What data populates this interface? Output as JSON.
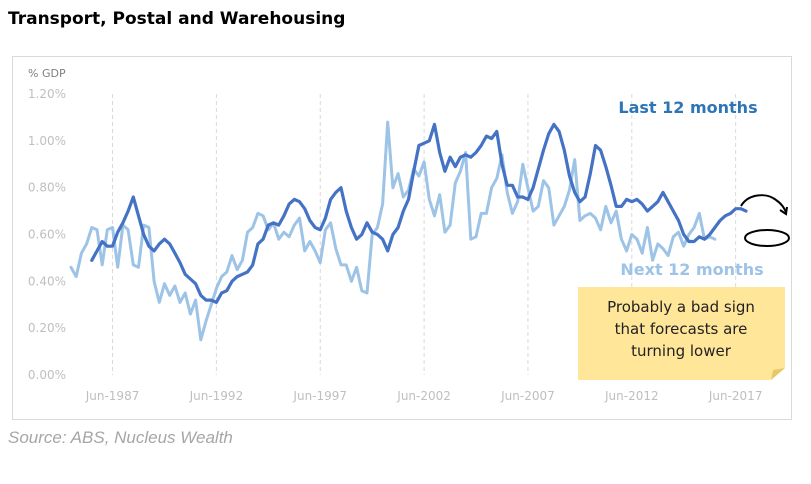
{
  "page": {
    "title": "Transport, Postal and Warehousing",
    "source": "Source: ABS, Nucleus Wealth"
  },
  "annotation": {
    "note_lines": [
      "Probably a bad sign",
      "that forecasts are",
      "turning lower"
    ],
    "note_bg": "#ffe699"
  },
  "chart_data": {
    "type": "line",
    "title": "",
    "ylabel": "% GDP",
    "xlabel": "",
    "ylim": [
      0,
      0.012
    ],
    "y_ticks": [
      "0.00%",
      "0.20%",
      "0.40%",
      "0.60%",
      "0.80%",
      "1.00%",
      "1.20%"
    ],
    "x_range": [
      "Jun-1985",
      "Mar-2019"
    ],
    "x_ticks": [
      "Jun-1987",
      "Jun-1992",
      "Jun-1997",
      "Jun-2002",
      "Jun-2007",
      "Jun-2012",
      "Jun-2017"
    ],
    "grid": "vertical dashed",
    "series": [
      {
        "name": "Last 12 months",
        "color": "#4472c4",
        "points": [
          [
            "Jun-1986",
            0.0049
          ],
          [
            "Sep-1986",
            0.0053
          ],
          [
            "Dec-1986",
            0.0057
          ],
          [
            "Mar-1987",
            0.0055
          ],
          [
            "Jun-1987",
            0.0055
          ],
          [
            "Sep-1987",
            0.0061
          ],
          [
            "Dec-1987",
            0.0065
          ],
          [
            "Mar-1988",
            0.007
          ],
          [
            "Jun-1988",
            0.0076
          ],
          [
            "Sep-1988",
            0.0068
          ],
          [
            "Dec-1988",
            0.006
          ],
          [
            "Mar-1989",
            0.0055
          ],
          [
            "Jun-1989",
            0.0053
          ],
          [
            "Sep-1989",
            0.0056
          ],
          [
            "Dec-1989",
            0.0058
          ],
          [
            "Mar-1990",
            0.0056
          ],
          [
            "Jun-1990",
            0.0052
          ],
          [
            "Sep-1990",
            0.0048
          ],
          [
            "Dec-1990",
            0.0043
          ],
          [
            "Mar-1991",
            0.0041
          ],
          [
            "Jun-1991",
            0.0039
          ],
          [
            "Sep-1991",
            0.0034
          ],
          [
            "Dec-1991",
            0.0032
          ],
          [
            "Mar-1992",
            0.0032
          ],
          [
            "Jun-1992",
            0.0031
          ],
          [
            "Sep-1992",
            0.0035
          ],
          [
            "Dec-1992",
            0.0036
          ],
          [
            "Mar-1993",
            0.004
          ],
          [
            "Jun-1993",
            0.0042
          ],
          [
            "Sep-1993",
            0.0043
          ],
          [
            "Dec-1993",
            0.0044
          ],
          [
            "Mar-1994",
            0.0047
          ],
          [
            "Jun-1994",
            0.0056
          ],
          [
            "Sep-1994",
            0.0058
          ],
          [
            "Dec-1994",
            0.0064
          ],
          [
            "Mar-1995",
            0.0065
          ],
          [
            "Jun-1995",
            0.0064
          ],
          [
            "Sep-1995",
            0.0068
          ],
          [
            "Dec-1995",
            0.0073
          ],
          [
            "Mar-1996",
            0.0075
          ],
          [
            "Jun-1996",
            0.0074
          ],
          [
            "Sep-1996",
            0.0071
          ],
          [
            "Dec-1996",
            0.0066
          ],
          [
            "Mar-1997",
            0.0063
          ],
          [
            "Jun-1997",
            0.0062
          ],
          [
            "Sep-1997",
            0.0067
          ],
          [
            "Dec-1997",
            0.0075
          ],
          [
            "Mar-1998",
            0.0078
          ],
          [
            "Jun-1998",
            0.008
          ],
          [
            "Sep-1998",
            0.007
          ],
          [
            "Dec-1998",
            0.0063
          ],
          [
            "Mar-1999",
            0.0058
          ],
          [
            "Jun-1999",
            0.006
          ],
          [
            "Sep-1999",
            0.0065
          ],
          [
            "Dec-1999",
            0.0061
          ],
          [
            "Mar-2000",
            0.006
          ],
          [
            "Jun-2000",
            0.0058
          ],
          [
            "Sep-2000",
            0.0053
          ],
          [
            "Dec-2000",
            0.006
          ],
          [
            "Mar-2001",
            0.0063
          ],
          [
            "Jun-2001",
            0.007
          ],
          [
            "Sep-2001",
            0.0075
          ],
          [
            "Dec-2001",
            0.0087
          ],
          [
            "Mar-2002",
            0.0098
          ],
          [
            "Jun-2002",
            0.0099
          ],
          [
            "Sep-2002",
            0.01
          ],
          [
            "Dec-2002",
            0.0107
          ],
          [
            "Mar-2003",
            0.0095
          ],
          [
            "Jun-2003",
            0.0087
          ],
          [
            "Sep-2003",
            0.0093
          ],
          [
            "Dec-2003",
            0.0089
          ],
          [
            "Mar-2004",
            0.0093
          ],
          [
            "Jun-2004",
            0.0094
          ],
          [
            "Sep-2004",
            0.0093
          ],
          [
            "Dec-2004",
            0.0095
          ],
          [
            "Mar-2005",
            0.0098
          ],
          [
            "Jun-2005",
            0.0102
          ],
          [
            "Sep-2005",
            0.0101
          ],
          [
            "Dec-2005",
            0.0104
          ],
          [
            "Mar-2006",
            0.009
          ],
          [
            "Jun-2006",
            0.0081
          ],
          [
            "Sep-2006",
            0.0081
          ],
          [
            "Dec-2006",
            0.0076
          ],
          [
            "Mar-2007",
            0.0076
          ],
          [
            "Jun-2007",
            0.0075
          ],
          [
            "Sep-2007",
            0.008
          ],
          [
            "Dec-2007",
            0.0088
          ],
          [
            "Mar-2008",
            0.0096
          ],
          [
            "Jun-2008",
            0.0103
          ],
          [
            "Sep-2008",
            0.0107
          ],
          [
            "Dec-2008",
            0.0104
          ],
          [
            "Mar-2009",
            0.0096
          ],
          [
            "Jun-2009",
            0.0085
          ],
          [
            "Sep-2009",
            0.0078
          ],
          [
            "Dec-2009",
            0.0074
          ],
          [
            "Mar-2010",
            0.0076
          ],
          [
            "Jun-2010",
            0.0086
          ],
          [
            "Sep-2010",
            0.0098
          ],
          [
            "Dec-2010",
            0.0096
          ],
          [
            "Mar-2011",
            0.0089
          ],
          [
            "Jun-2011",
            0.0081
          ],
          [
            "Sep-2011",
            0.0072
          ],
          [
            "Dec-2011",
            0.0072
          ],
          [
            "Mar-2012",
            0.0075
          ],
          [
            "Jun-2012",
            0.0074
          ],
          [
            "Sep-2012",
            0.0075
          ],
          [
            "Dec-2012",
            0.0073
          ],
          [
            "Mar-2013",
            0.007
          ],
          [
            "Jun-2013",
            0.0072
          ],
          [
            "Sep-2013",
            0.0074
          ],
          [
            "Dec-2013",
            0.0078
          ],
          [
            "Mar-2014",
            0.0074
          ],
          [
            "Jun-2014",
            0.007
          ],
          [
            "Sep-2014",
            0.0066
          ],
          [
            "Dec-2014",
            0.006
          ],
          [
            "Mar-2015",
            0.0057
          ],
          [
            "Jun-2015",
            0.0057
          ],
          [
            "Sep-2015",
            0.0059
          ],
          [
            "Dec-2015",
            0.0058
          ],
          [
            "Mar-2016",
            0.006
          ],
          [
            "Jun-2016",
            0.0063
          ],
          [
            "Sep-2016",
            0.0066
          ],
          [
            "Dec-2016",
            0.0068
          ],
          [
            "Mar-2017",
            0.0069
          ],
          [
            "Jun-2017",
            0.0071
          ],
          [
            "Sep-2017",
            0.0071
          ],
          [
            "Dec-2017",
            0.007
          ]
        ]
      },
      {
        "name": "Next 12 months",
        "color": "#9dc3e6",
        "points": [
          [
            "Jun-1985",
            0.0046
          ],
          [
            "Sep-1985",
            0.0042
          ],
          [
            "Dec-1985",
            0.0052
          ],
          [
            "Mar-1986",
            0.0056
          ],
          [
            "Jun-1986",
            0.0063
          ],
          [
            "Sep-1986",
            0.0062
          ],
          [
            "Dec-1986",
            0.0047
          ],
          [
            "Mar-1987",
            0.0062
          ],
          [
            "Jun-1987",
            0.0063
          ],
          [
            "Sep-1987",
            0.0046
          ],
          [
            "Dec-1987",
            0.0064
          ],
          [
            "Mar-1988",
            0.0062
          ],
          [
            "Jun-1988",
            0.0047
          ],
          [
            "Sep-1988",
            0.0046
          ],
          [
            "Dec-1988",
            0.0064
          ],
          [
            "Mar-1989",
            0.0063
          ],
          [
            "Jun-1989",
            0.004
          ],
          [
            "Sep-1989",
            0.0031
          ],
          [
            "Dec-1989",
            0.0039
          ],
          [
            "Mar-1990",
            0.0034
          ],
          [
            "Jun-1990",
            0.0038
          ],
          [
            "Sep-1990",
            0.0031
          ],
          [
            "Dec-1990",
            0.0035
          ],
          [
            "Mar-1991",
            0.0026
          ],
          [
            "Jun-1991",
            0.0032
          ],
          [
            "Sep-1991",
            0.0015
          ],
          [
            "Dec-1991",
            0.0023
          ],
          [
            "Mar-1992",
            0.003
          ],
          [
            "Jun-1992",
            0.0037
          ],
          [
            "Sep-1992",
            0.0042
          ],
          [
            "Dec-1992",
            0.0044
          ],
          [
            "Mar-1993",
            0.0051
          ],
          [
            "Jun-1993",
            0.0045
          ],
          [
            "Sep-1993",
            0.0049
          ],
          [
            "Dec-1993",
            0.0061
          ],
          [
            "Mar-1994",
            0.0063
          ],
          [
            "Jun-1994",
            0.0069
          ],
          [
            "Sep-1994",
            0.0068
          ],
          [
            "Dec-1994",
            0.0062
          ],
          [
            "Mar-1995",
            0.0065
          ],
          [
            "Jun-1995",
            0.0058
          ],
          [
            "Sep-1995",
            0.0061
          ],
          [
            "Dec-1995",
            0.0059
          ],
          [
            "Mar-1996",
            0.0064
          ],
          [
            "Jun-1996",
            0.0067
          ],
          [
            "Sep-1996",
            0.0053
          ],
          [
            "Dec-1996",
            0.0057
          ],
          [
            "Mar-1997",
            0.0053
          ],
          [
            "Jun-1997",
            0.0048
          ],
          [
            "Sep-1997",
            0.0062
          ],
          [
            "Dec-1997",
            0.0065
          ],
          [
            "Mar-1998",
            0.0054
          ],
          [
            "Jun-1998",
            0.0047
          ],
          [
            "Sep-1998",
            0.0047
          ],
          [
            "Dec-1998",
            0.004
          ],
          [
            "Mar-1999",
            0.0046
          ],
          [
            "Jun-1999",
            0.0036
          ],
          [
            "Sep-1999",
            0.0035
          ],
          [
            "Dec-1999",
            0.006
          ],
          [
            "Mar-2000",
            0.0063
          ],
          [
            "Jun-2000",
            0.0073
          ],
          [
            "Sep-2000",
            0.0108
          ],
          [
            "Dec-2000",
            0.008
          ],
          [
            "Mar-2001",
            0.0086
          ],
          [
            "Jun-2001",
            0.0076
          ],
          [
            "Sep-2001",
            0.0079
          ],
          [
            "Dec-2001",
            0.0088
          ],
          [
            "Mar-2002",
            0.0085
          ],
          [
            "Jun-2002",
            0.0091
          ],
          [
            "Sep-2002",
            0.0075
          ],
          [
            "Dec-2002",
            0.0068
          ],
          [
            "Mar-2003",
            0.0077
          ],
          [
            "Jun-2003",
            0.0061
          ],
          [
            "Sep-2003",
            0.0064
          ],
          [
            "Dec-2003",
            0.0082
          ],
          [
            "Mar-2004",
            0.0087
          ],
          [
            "Jun-2004",
            0.0095
          ],
          [
            "Sep-2004",
            0.0058
          ],
          [
            "Dec-2004",
            0.0059
          ],
          [
            "Mar-2005",
            0.0069
          ],
          [
            "Jun-2005",
            0.0069
          ],
          [
            "Sep-2005",
            0.008
          ],
          [
            "Dec-2005",
            0.0084
          ],
          [
            "Mar-2006",
            0.0094
          ],
          [
            "Jun-2006",
            0.0078
          ],
          [
            "Sep-2006",
            0.0069
          ],
          [
            "Dec-2006",
            0.0074
          ],
          [
            "Mar-2007",
            0.009
          ],
          [
            "Jun-2007",
            0.008
          ],
          [
            "Sep-2007",
            0.007
          ],
          [
            "Dec-2007",
            0.0072
          ],
          [
            "Mar-2008",
            0.0083
          ],
          [
            "Jun-2008",
            0.008
          ],
          [
            "Sep-2008",
            0.0064
          ],
          [
            "Dec-2008",
            0.0068
          ],
          [
            "Mar-2009",
            0.0072
          ],
          [
            "Jun-2009",
            0.0079
          ],
          [
            "Sep-2009",
            0.0092
          ],
          [
            "Dec-2009",
            0.0066
          ],
          [
            "Mar-2010",
            0.0068
          ],
          [
            "Jun-2010",
            0.0069
          ],
          [
            "Sep-2010",
            0.0067
          ],
          [
            "Dec-2010",
            0.0062
          ],
          [
            "Mar-2011",
            0.0072
          ],
          [
            "Jun-2011",
            0.0065
          ],
          [
            "Sep-2011",
            0.007
          ],
          [
            "Dec-2011",
            0.0058
          ],
          [
            "Mar-2012",
            0.0053
          ],
          [
            "Jun-2012",
            0.006
          ],
          [
            "Sep-2012",
            0.0058
          ],
          [
            "Dec-2012",
            0.0052
          ],
          [
            "Mar-2013",
            0.0063
          ],
          [
            "Jun-2013",
            0.0049
          ],
          [
            "Sep-2013",
            0.0056
          ],
          [
            "Dec-2013",
            0.0054
          ],
          [
            "Mar-2014",
            0.0051
          ],
          [
            "Jun-2014",
            0.0059
          ],
          [
            "Sep-2014",
            0.0061
          ],
          [
            "Dec-2014",
            0.0055
          ],
          [
            "Mar-2015",
            0.006
          ],
          [
            "Jun-2015",
            0.0063
          ],
          [
            "Sep-2015",
            0.0069
          ],
          [
            "Dec-2015",
            0.0058
          ],
          [
            "Mar-2016",
            0.0059
          ],
          [
            "Jun-2016",
            0.0058
          ]
        ]
      }
    ]
  }
}
